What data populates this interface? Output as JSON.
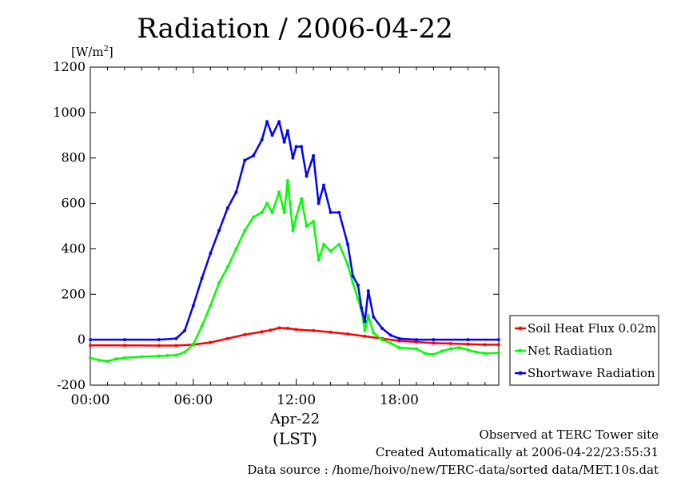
{
  "chart_data": {
    "type": "line",
    "title": "Radiation / 2006-04-22",
    "ylabel": "[W/m2]",
    "y_unit_base": "[W/m",
    "y_unit_sup": "2",
    "y_unit_close": "]",
    "ylim": [
      -200,
      1200
    ],
    "yticks": [
      "1200",
      "1000",
      "800",
      "600",
      "400",
      "200",
      "0",
      "-200"
    ],
    "xlim": [
      0,
      23.8
    ],
    "xticks": [
      "00:00",
      "06:00",
      "12:00",
      "18:00"
    ],
    "xlabel_date": "Apr-22",
    "xlabel_tz": "(LST)",
    "grid": false,
    "legend_position": "bottom-right outside",
    "series": [
      {
        "name": "Soil Heat Flux 0.02m",
        "color": "#ff0000",
        "x": [
          0,
          2,
          4,
          5,
          6,
          7,
          8,
          9,
          10,
          10.5,
          11,
          11.5,
          12,
          13,
          14,
          15,
          16,
          17,
          18,
          19,
          20,
          21,
          22,
          23,
          23.8
        ],
        "y": [
          -25,
          -25,
          -26,
          -26,
          -22,
          -12,
          5,
          22,
          35,
          42,
          52,
          50,
          45,
          40,
          33,
          25,
          15,
          5,
          -5,
          -10,
          -15,
          -17,
          -20,
          -22,
          -22
        ]
      },
      {
        "name": "Net Radiation",
        "color": "#00ff00",
        "x": [
          0,
          0.5,
          1,
          1.5,
          2,
          3,
          4,
          4.5,
          5,
          5.5,
          6,
          6.5,
          7,
          7.5,
          8,
          8.5,
          9,
          9.5,
          10,
          10.3,
          10.6,
          11,
          11.3,
          11.5,
          11.8,
          12,
          12.3,
          12.6,
          13,
          13.3,
          13.6,
          14,
          14.5,
          15,
          15.3,
          15.6,
          15.8,
          16,
          16.2,
          16.5,
          17,
          17.5,
          18,
          19,
          19.5,
          20,
          20.5,
          21,
          21.5,
          22,
          22.5,
          23,
          23.8
        ],
        "y": [
          -80,
          -90,
          -95,
          -85,
          -80,
          -75,
          -72,
          -70,
          -68,
          -55,
          -20,
          60,
          150,
          250,
          320,
          400,
          480,
          540,
          560,
          600,
          560,
          650,
          560,
          700,
          480,
          540,
          620,
          500,
          520,
          350,
          420,
          390,
          420,
          330,
          250,
          180,
          130,
          40,
          105,
          30,
          0,
          -15,
          -35,
          -40,
          -60,
          -65,
          -50,
          -40,
          -35,
          -45,
          -55,
          -60,
          -58
        ]
      },
      {
        "name": "Shortwave Radiation",
        "color": "#0000ff",
        "x": [
          0,
          2,
          4,
          5,
          5.5,
          6,
          6.5,
          7,
          7.5,
          8,
          8.5,
          9,
          9.5,
          10,
          10.3,
          10.6,
          11,
          11.3,
          11.5,
          11.8,
          12,
          12.3,
          12.6,
          13,
          13.3,
          13.6,
          14,
          14.5,
          15,
          15.3,
          15.6,
          15.8,
          16,
          16.2,
          16.5,
          17,
          17.5,
          18,
          19,
          20,
          22,
          23.8
        ],
        "y": [
          0,
          0,
          0,
          5,
          40,
          150,
          270,
          380,
          480,
          580,
          650,
          790,
          810,
          880,
          960,
          900,
          960,
          870,
          920,
          800,
          850,
          850,
          720,
          810,
          600,
          680,
          560,
          560,
          420,
          280,
          240,
          140,
          80,
          215,
          100,
          50,
          20,
          5,
          0,
          0,
          0,
          0
        ]
      }
    ]
  },
  "footer": {
    "line1": "Observed at TERC Tower site",
    "line2": "Created Automatically at 2006-04-22/23:55:31",
    "line3": "Data source : /home/hoivo/new/TERC-data/sorted  data/MET.10s.dat"
  }
}
